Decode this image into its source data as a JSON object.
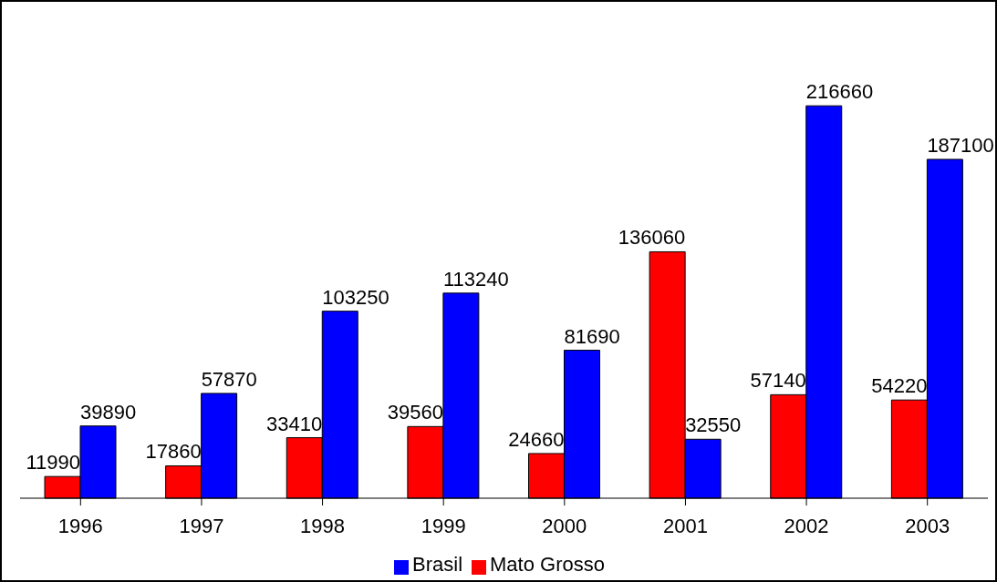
{
  "chart_data": {
    "type": "bar",
    "categories": [
      "1996",
      "1997",
      "1998",
      "1999",
      "2000",
      "2001",
      "2002",
      "2003"
    ],
    "series": [
      {
        "name": "Mato Grosso",
        "color": "#ff0000",
        "values": [
          11990,
          17860,
          33410,
          39560,
          24660,
          136060,
          57140,
          54220
        ]
      },
      {
        "name": "Brasil",
        "color": "#0000ff",
        "values": [
          39890,
          57870,
          103250,
          113240,
          81690,
          32550,
          216660,
          187100
        ]
      }
    ],
    "data_labels": true,
    "legend": "bottom",
    "grid": false
  }
}
